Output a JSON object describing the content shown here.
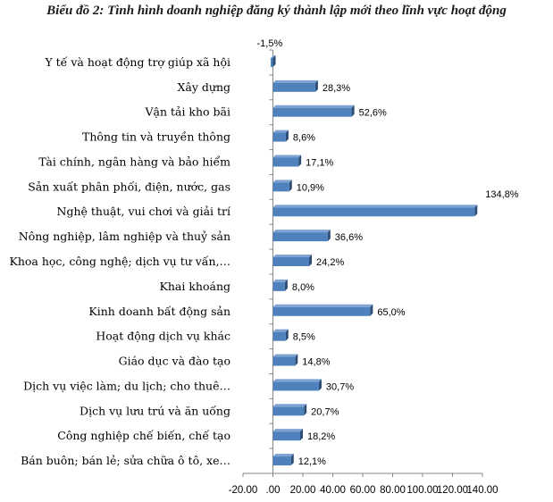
{
  "chart_data": {
    "type": "bar",
    "orientation": "horizontal",
    "title": "Biểu đồ 2: Tình hình doanh nghiệp đăng ký thành lập mới theo lĩnh vực hoạt động",
    "categories": [
      "Y tế và hoạt động trợ giúp xã hội",
      "Xây dựng",
      "Vận tải kho bãi",
      "Thông tin và truyền thông",
      "Tài chính, ngân hàng và bảo hiểm",
      "Sản xuất phân phối, điện, nước, gas",
      "Nghệ thuật, vui chơi và giải trí",
      "Nông nghiệp, lâm nghiệp và thuỷ sản",
      "Khoa học, công nghệ; dịch vụ tư vấn,…",
      "Khai khoáng",
      "Kinh doanh bất động sản",
      "Hoạt động dịch vụ khác",
      "Giáo dục và đào tạo",
      "Dịch vụ việc làm; du lịch; cho thuê…",
      "Dịch vụ lưu trú và ăn uống",
      "Công nghiệp chế biến, chế tạo",
      "Bán buôn; bán lẻ; sửa chữa ô tô, xe…"
    ],
    "values": [
      -1.5,
      28.3,
      52.6,
      8.6,
      17.1,
      10.9,
      134.8,
      36.6,
      24.2,
      8.0,
      65.0,
      8.5,
      14.8,
      30.7,
      20.7,
      18.2,
      12.1
    ],
    "data_labels": [
      "-1,5%",
      "28,3%",
      "52,6%",
      "8,6%",
      "17,1%",
      "10,9%",
      "134,8%",
      "36,6%",
      "24,2%",
      "8,0%",
      "65,0%",
      "8,5%",
      "14,8%",
      "30,7%",
      "20,7%",
      "18,2%",
      "12,1%"
    ],
    "xlim": [
      -20,
      140
    ],
    "x_ticks": [
      -20,
      0,
      20,
      40,
      60,
      80,
      100,
      120,
      140
    ],
    "x_tick_labels": [
      "-20.00",
      ".00",
      "20.00",
      "40.00",
      "60.00",
      "80.00",
      "100.00",
      "120.00",
      "140.00"
    ],
    "grid": false,
    "legend": "none",
    "bar_color": "#4f81bd",
    "bar_side_color": "#2c4d75",
    "bar_top_color": "#7ea3d3"
  }
}
